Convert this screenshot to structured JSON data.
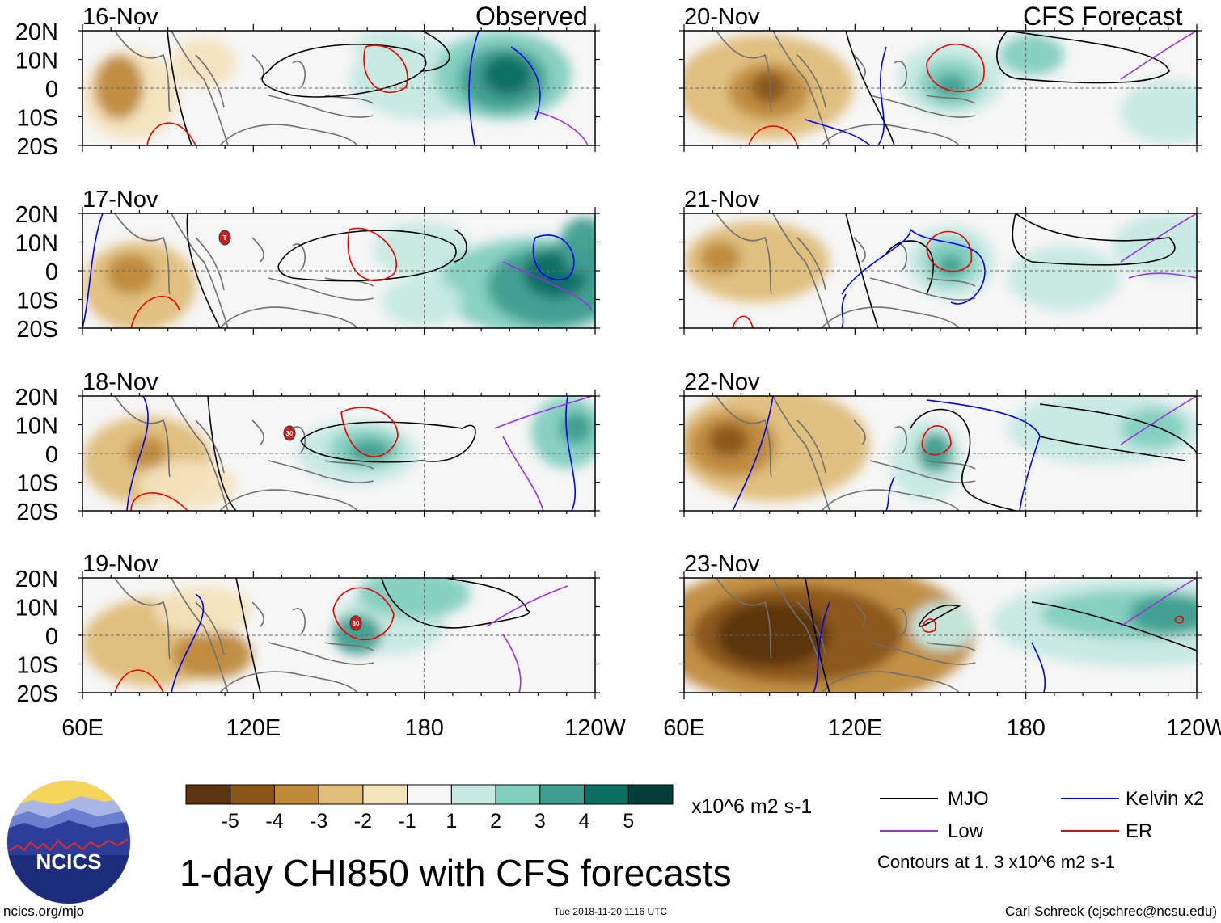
{
  "title": "1-day CHI850 with CFS forecasts",
  "left_header": "Observed",
  "right_header": "CFS Forecast",
  "panels_left": [
    {
      "date": "16-Nov"
    },
    {
      "date": "17-Nov",
      "storm_label": "T"
    },
    {
      "date": "18-Nov",
      "storm_label": "30"
    },
    {
      "date": "19-Nov",
      "storm_label": "30"
    }
  ],
  "panels_right": [
    {
      "date": "20-Nov"
    },
    {
      "date": "21-Nov"
    },
    {
      "date": "22-Nov"
    },
    {
      "date": "23-Nov"
    }
  ],
  "lat_labels": [
    "20N",
    "10N",
    "0",
    "10S",
    "20S"
  ],
  "lon_labels": [
    "60E",
    "120E",
    "180",
    "120W"
  ],
  "colorbar": {
    "colors": [
      "#5a3510",
      "#8a5518",
      "#bf8a3c",
      "#dfbd7a",
      "#f4e3bd",
      "#f6f6f6",
      "#c6e9e2",
      "#82cfc0",
      "#3f9e90",
      "#0d6e64",
      "#053e38"
    ],
    "tick_labels": [
      "-5",
      "-4",
      "-3",
      "-2",
      "-1",
      "1",
      "2",
      "3",
      "4",
      "5"
    ],
    "units": "x10^6 m2 s-1"
  },
  "legend": {
    "mjo": {
      "label": "MJO",
      "color": "#000000"
    },
    "kelvin": {
      "label": "Kelvin x2",
      "color": "#0000ee"
    },
    "low": {
      "label": "Low",
      "color": "#9932e0"
    },
    "er": {
      "label": "ER",
      "color": "#ee0000"
    },
    "contour_note": "Contours at 1, 3 x10^6 m2 s-1"
  },
  "logo_text": "NCICS",
  "footer": {
    "left": "ncics.org/mjo",
    "center": "Tue 2018-11-20 1116 UTC",
    "right": "Carl Schreck (cjschrec@ncsu.edu)"
  }
}
